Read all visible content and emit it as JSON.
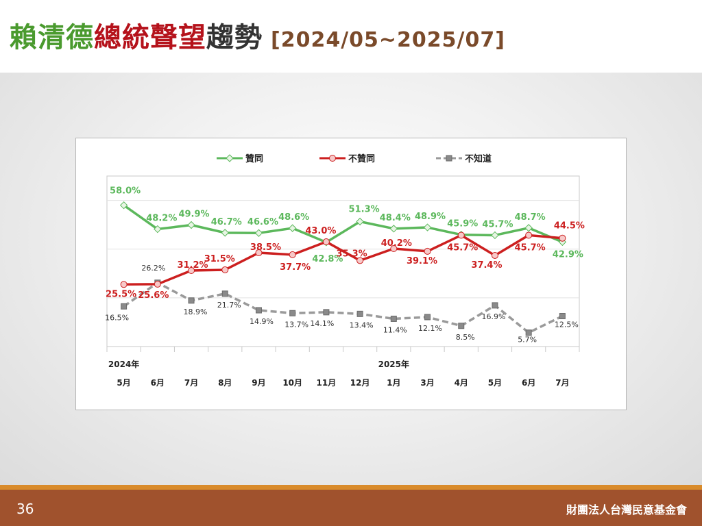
{
  "slide": {
    "title_segments": [
      {
        "text": "賴清德",
        "color": "#4a9a2e"
      },
      {
        "text": "總統聲望",
        "color": "#b5121b"
      },
      {
        "text": "趨勢",
        "color": "#333333"
      }
    ],
    "date_range": "[2024/05~2025/07]",
    "date_range_color": "#7a4a2a",
    "page_number": "36",
    "organization": "財團法人台灣民意基金會"
  },
  "chart_data": {
    "type": "line",
    "year_labels": [
      {
        "index": 0,
        "text": "2024年"
      },
      {
        "index": 8,
        "text": "2025年"
      }
    ],
    "categories": [
      "5月",
      "6月",
      "7月",
      "8月",
      "9月",
      "10月",
      "11月",
      "12月",
      "1月",
      "3月",
      "4月",
      "5月",
      "6月",
      "7月"
    ],
    "ylim": [
      0,
      70
    ],
    "grid": "horizontal",
    "legend_position": "top",
    "series": [
      {
        "name": "贊同",
        "color": "#5cb85c",
        "label_color": "#5cb85c",
        "marker": "diamond",
        "style": "solid",
        "values": [
          58.0,
          48.2,
          49.9,
          46.7,
          46.6,
          48.6,
          42.8,
          51.3,
          48.4,
          48.9,
          45.9,
          45.7,
          48.7,
          42.9
        ],
        "labels": [
          "58.0%",
          "48.2%",
          "49.9%",
          "46.7%",
          "46.6%",
          "48.6%",
          "42.8%",
          "51.3%",
          "48.4%",
          "48.9%",
          "45.9%",
          "45.7%",
          "48.7%",
          "42.9%"
        ]
      },
      {
        "name": "不贊同",
        "color": "#cc1f1f",
        "label_color": "#cc1f1f",
        "marker": "circle",
        "style": "solid",
        "values": [
          25.5,
          25.6,
          31.2,
          31.5,
          38.5,
          37.7,
          43.0,
          35.3,
          40.2,
          39.1,
          45.7,
          37.4,
          45.7,
          44.5
        ],
        "labels": [
          "25.5%",
          "25.6%",
          "31.2%",
          "31.5%",
          "38.5%",
          "37.7%",
          "43.0%",
          "35.3%",
          "40.2%",
          "39.1%",
          "45.7%",
          "37.4%",
          "45.7%",
          "44.5%"
        ]
      },
      {
        "name": "不知道",
        "color": "#9a9a9a",
        "label_color": "#333333",
        "marker": "square",
        "style": "dashed",
        "values": [
          16.5,
          26.2,
          18.9,
          21.7,
          14.9,
          13.7,
          14.1,
          13.4,
          11.4,
          12.1,
          8.5,
          16.9,
          5.7,
          12.5
        ],
        "labels": [
          "16.5%",
          "26.2%",
          "18.9%",
          "21.7%",
          "14.9%",
          "13.7%",
          "14.1%",
          "13.4%",
          "11.4%",
          "12.1%",
          "8.5%",
          "16.9%",
          "5.7%",
          "12.5%"
        ]
      }
    ]
  }
}
